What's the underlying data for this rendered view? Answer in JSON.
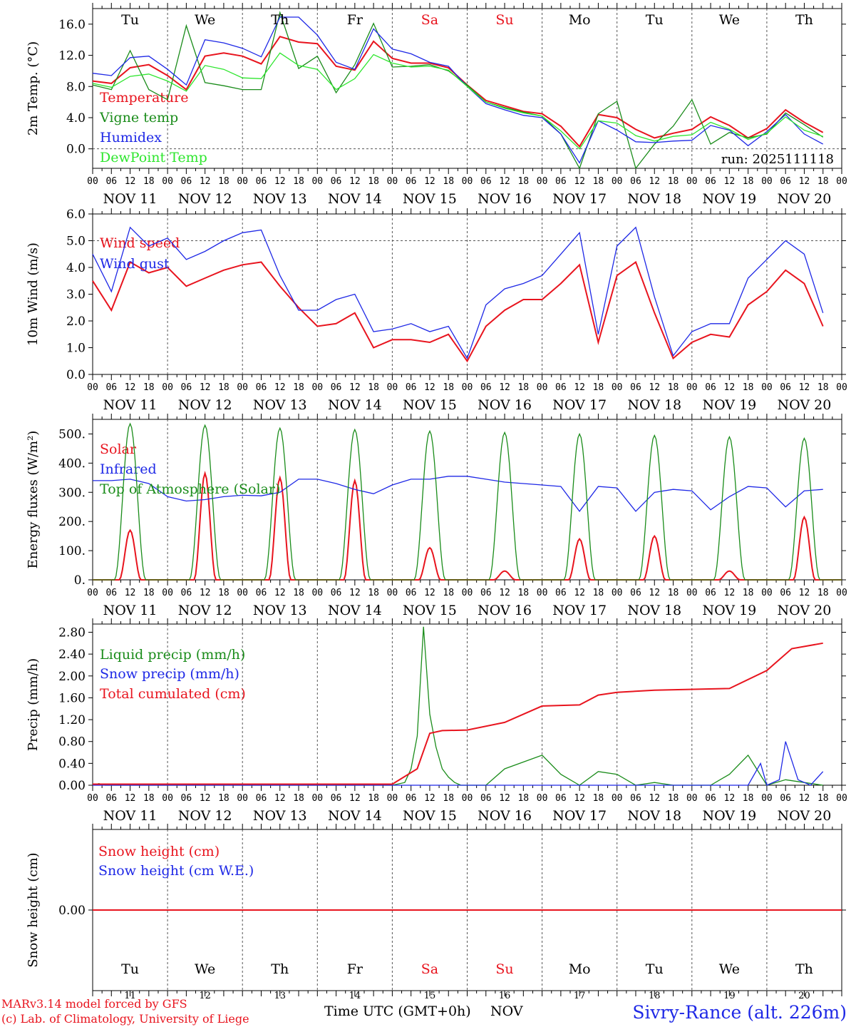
{
  "station": "Sivry-Rance (alt. 226m)",
  "run_label": "run: 2025111118",
  "credits": {
    "line1": "MARv3.14 model forced by GFS",
    "line2": "(c) Lab. of Climatology, University of Liege"
  },
  "xaxis": {
    "title": "Time UTC (GMT+0h)",
    "month": "NOV",
    "hour_ticks": [
      "00",
      "06",
      "12",
      "18"
    ],
    "day_labels": [
      "NOV 11",
      "NOV 12",
      "NOV 13",
      "NOV 14",
      "NOV 15",
      "NOV 16",
      "NOV 17",
      "NOV 18",
      "NOV 19",
      "NOV 20"
    ],
    "day_numbers": [
      "11",
      "12",
      "13",
      "14",
      "15",
      "16",
      "17",
      "18",
      "19",
      "20"
    ],
    "weekdays": [
      "Tu",
      "We",
      "Th",
      "Fr",
      "Sa",
      "Su",
      "Mo",
      "Tu",
      "We",
      "Th"
    ],
    "weekend": [
      false,
      false,
      false,
      false,
      true,
      true,
      false,
      false,
      false,
      false
    ]
  },
  "colors": {
    "red": "#e8141e",
    "green": "#1a8c1a",
    "blue": "#1e28e6",
    "lightgreen": "#2ee62e",
    "grid": "#555555",
    "axis": "#000000"
  },
  "chart_data": [
    {
      "type": "line",
      "title": "",
      "ylabel": "2m Temp. (°C)",
      "ylim": [
        -2.5,
        18.0
      ],
      "yticks": [
        "0.0",
        "4.0",
        "8.0",
        "12.0",
        "16.0"
      ],
      "ytick_values": [
        0,
        4,
        8,
        12,
        16
      ],
      "ref_line": 0,
      "x_unit": "hours since NOV 11 00 UTC",
      "series": [
        {
          "name": "Temperature",
          "color": "red",
          "x": [
            0,
            6,
            12,
            18,
            24,
            30,
            36,
            42,
            48,
            54,
            60,
            66,
            72,
            78,
            84,
            90,
            96,
            102,
            108,
            114,
            120,
            126,
            132,
            138,
            144,
            150,
            156,
            162,
            168,
            174,
            180,
            186,
            192,
            198,
            204,
            210,
            216,
            222,
            228,
            234
          ],
          "values": [
            8.7,
            8.4,
            10.4,
            10.8,
            9.4,
            7.6,
            11.9,
            12.3,
            11.9,
            10.9,
            14.4,
            13.7,
            13.5,
            10.6,
            10.1,
            13.8,
            11.6,
            11.0,
            11.0,
            10.4,
            8.2,
            6.2,
            5.5,
            4.8,
            4.5,
            2.9,
            0.3,
            4.4,
            4.0,
            2.5,
            1.4,
            2.0,
            2.5,
            4.1,
            3.0,
            1.4,
            2.6,
            5.0,
            3.4,
            2.1
          ]
        },
        {
          "name": "Vigne temp",
          "color": "green",
          "x": [
            0,
            6,
            12,
            18,
            24,
            30,
            36,
            42,
            48,
            54,
            60,
            66,
            72,
            78,
            84,
            90,
            96,
            102,
            108,
            114,
            120,
            126,
            132,
            138,
            144,
            150,
            156,
            162,
            168,
            174,
            180,
            186,
            192,
            198,
            204,
            210,
            216,
            222,
            228,
            234
          ],
          "values": [
            8.2,
            7.6,
            12.6,
            7.6,
            6.3,
            15.8,
            8.5,
            8.1,
            7.6,
            7.6,
            17.5,
            10.3,
            11.9,
            7.2,
            10.8,
            16.1,
            10.5,
            10.6,
            10.8,
            10.0,
            8.2,
            6.0,
            5.3,
            4.7,
            4.2,
            1.9,
            -2.5,
            4.5,
            6.1,
            -2.5,
            0.6,
            2.9,
            6.3,
            0.6,
            2.1,
            1.4,
            1.9,
            4.6,
            3.1,
            1.5
          ]
        },
        {
          "name": "Humidex",
          "color": "blue",
          "x": [
            0,
            6,
            12,
            18,
            24,
            30,
            36,
            42,
            48,
            54,
            60,
            66,
            72,
            78,
            84,
            90,
            96,
            102,
            108,
            114,
            120,
            126,
            132,
            138,
            144,
            150,
            156,
            162,
            168,
            174,
            180,
            186,
            192,
            198,
            204,
            210,
            216,
            222,
            228,
            234
          ],
          "values": [
            9.7,
            9.4,
            11.7,
            11.9,
            10.2,
            8.2,
            14.0,
            13.6,
            12.9,
            11.8,
            16.9,
            16.9,
            14.6,
            11.1,
            10.2,
            15.4,
            12.8,
            12.2,
            11.1,
            10.6,
            8.0,
            5.8,
            5.0,
            4.3,
            4.0,
            1.9,
            -1.8,
            3.6,
            2.4,
            0.9,
            0.8,
            1.0,
            1.1,
            3.0,
            2.4,
            0.4,
            2.2,
            4.4,
            1.9,
            0.6
          ]
        },
        {
          "name": "DewPoint Temp",
          "color": "lightgreen",
          "x": [
            0,
            6,
            12,
            18,
            24,
            30,
            36,
            42,
            48,
            54,
            60,
            66,
            72,
            78,
            84,
            90,
            96,
            102,
            108,
            114,
            120,
            126,
            132,
            138,
            144,
            150,
            156,
            162,
            168,
            174,
            180,
            186,
            192,
            198,
            204,
            210,
            216,
            222,
            228,
            234
          ],
          "values": [
            8.4,
            7.9,
            9.3,
            9.6,
            8.7,
            7.4,
            10.7,
            10.2,
            9.1,
            9.0,
            12.3,
            10.7,
            10.2,
            7.6,
            9.0,
            12.1,
            11.0,
            10.5,
            10.6,
            10.1,
            8.0,
            6.0,
            5.2,
            4.6,
            4.2,
            2.3,
            0.0,
            3.6,
            3.3,
            1.7,
            1.0,
            1.6,
            1.8,
            3.4,
            2.5,
            1.2,
            2.0,
            4.1,
            2.4,
            1.6
          ]
        }
      ]
    },
    {
      "type": "line",
      "title": "",
      "ylabel": "10m Wind (m/s)",
      "ylim": [
        0,
        6.0
      ],
      "yticks": [
        "0.0",
        "1.0",
        "2.0",
        "3.0",
        "4.0",
        "5.0",
        "6.0"
      ],
      "ytick_values": [
        0,
        1,
        2,
        3,
        4,
        5,
        6
      ],
      "ref_line": 5,
      "x_unit": "hours since NOV 11 00 UTC",
      "series": [
        {
          "name": "Wind speed",
          "color": "red",
          "x": [
            0,
            6,
            12,
            18,
            24,
            30,
            36,
            42,
            48,
            54,
            60,
            66,
            72,
            78,
            84,
            90,
            96,
            102,
            108,
            114,
            120,
            126,
            132,
            138,
            144,
            150,
            156,
            162,
            168,
            174,
            180,
            186,
            192,
            198,
            204,
            210,
            216,
            222,
            228,
            234
          ],
          "values": [
            3.5,
            2.4,
            4.2,
            3.8,
            4.0,
            3.3,
            3.6,
            3.9,
            4.1,
            4.2,
            3.3,
            2.5,
            1.8,
            1.9,
            2.3,
            1.0,
            1.3,
            1.3,
            1.2,
            1.5,
            0.5,
            1.8,
            2.4,
            2.8,
            2.8,
            3.4,
            4.1,
            1.2,
            3.7,
            4.2,
            2.3,
            0.6,
            1.2,
            1.5,
            1.4,
            2.6,
            3.1,
            3.9,
            3.4,
            1.8
          ]
        },
        {
          "name": "Wind gust",
          "color": "blue",
          "x": [
            0,
            6,
            12,
            18,
            24,
            30,
            36,
            42,
            48,
            54,
            60,
            66,
            72,
            78,
            84,
            90,
            96,
            102,
            108,
            114,
            120,
            126,
            132,
            138,
            144,
            150,
            156,
            162,
            168,
            174,
            180,
            186,
            192,
            198,
            204,
            210,
            216,
            222,
            228,
            234
          ],
          "values": [
            4.5,
            3.1,
            5.5,
            4.8,
            5.1,
            4.3,
            4.6,
            5.0,
            5.3,
            5.4,
            3.7,
            2.4,
            2.4,
            2.8,
            3.0,
            1.6,
            1.7,
            1.9,
            1.6,
            1.8,
            0.6,
            2.6,
            3.2,
            3.4,
            3.7,
            4.5,
            5.3,
            1.5,
            4.8,
            5.5,
            2.9,
            0.7,
            1.6,
            1.9,
            1.9,
            3.6,
            4.3,
            5.0,
            4.5,
            2.3
          ]
        }
      ]
    },
    {
      "type": "line",
      "title": "",
      "ylabel": "Energy fluxes (W/m²)",
      "ylim": [
        0,
        550
      ],
      "yticks": [
        "0.",
        "100.",
        "200.",
        "300.",
        "400.",
        "500."
      ],
      "ytick_values": [
        0,
        100,
        200,
        300,
        400,
        500
      ],
      "x_unit": "hours since NOV 11 00 UTC",
      "series": [
        {
          "name": "Solar",
          "color": "red",
          "peaks": [
            170,
            365,
            350,
            340,
            110,
            30,
            140,
            150,
            30,
            215
          ]
        },
        {
          "name": "Infrared",
          "color": "blue",
          "x": [
            0,
            6,
            12,
            18,
            24,
            30,
            36,
            42,
            48,
            54,
            60,
            66,
            72,
            78,
            84,
            90,
            96,
            102,
            108,
            114,
            120,
            126,
            132,
            138,
            144,
            150,
            156,
            162,
            168,
            174,
            180,
            186,
            192,
            198,
            204,
            210,
            216,
            222,
            228,
            234
          ],
          "values": [
            340,
            340,
            345,
            330,
            285,
            270,
            275,
            285,
            290,
            288,
            300,
            345,
            345,
            330,
            310,
            295,
            325,
            345,
            345,
            355,
            355,
            345,
            335,
            330,
            325,
            320,
            235,
            320,
            315,
            235,
            300,
            310,
            305,
            240,
            285,
            320,
            315,
            250,
            305,
            310
          ]
        },
        {
          "name": "Top of Atmosphere (Solar)",
          "color": "green",
          "peaks": [
            535,
            530,
            520,
            515,
            510,
            505,
            500,
            495,
            490,
            485
          ]
        }
      ]
    },
    {
      "type": "line",
      "title": "",
      "ylabel": "Precip (mm/h)",
      "ylim": [
        0,
        2.95
      ],
      "yticks": [
        "0.00",
        "0.40",
        "0.80",
        "1.20",
        "1.60",
        "2.00",
        "2.40",
        "2.80"
      ],
      "ytick_values": [
        0,
        0.4,
        0.8,
        1.2,
        1.6,
        2.0,
        2.4,
        2.8
      ],
      "x_unit": "hours since NOV 11 00 UTC",
      "series": [
        {
          "name": "Liquid precip (mm/h)",
          "color": "green",
          "x": [
            0,
            2,
            4,
            24,
            60,
            96,
            100,
            102,
            104,
            106,
            108,
            110,
            112,
            114,
            116,
            118,
            120,
            126,
            132,
            144,
            150,
            156,
            162,
            168,
            174,
            180,
            186,
            192,
            198,
            204,
            210,
            216,
            222,
            228,
            234
          ],
          "values": [
            0.0,
            0.03,
            0.0,
            0.0,
            0.0,
            0.0,
            0.05,
            0.3,
            0.9,
            2.9,
            1.3,
            0.7,
            0.3,
            0.15,
            0.05,
            0.0,
            0.0,
            0.0,
            0.3,
            0.55,
            0.2,
            0.0,
            0.25,
            0.2,
            0.0,
            0.05,
            0.0,
            0.0,
            0.0,
            0.2,
            0.55,
            0.0,
            0.1,
            0.05,
            0.0
          ]
        },
        {
          "name": "Snow precip (mm/h)",
          "color": "blue",
          "x": [
            0,
            168,
            210,
            214,
            216,
            220,
            222,
            226,
            230,
            234
          ],
          "values": [
            0.0,
            0.0,
            0.0,
            0.4,
            0.0,
            0.1,
            0.8,
            0.1,
            0.0,
            0.25
          ]
        },
        {
          "name": "Total cumulated (cm)",
          "color": "red",
          "x": [
            0,
            96,
            104,
            108,
            112,
            120,
            132,
            144,
            150,
            156,
            162,
            168,
            180,
            204,
            216,
            224,
            234
          ],
          "values": [
            0.02,
            0.02,
            0.3,
            0.95,
            1.0,
            1.01,
            1.15,
            1.45,
            1.46,
            1.47,
            1.65,
            1.7,
            1.74,
            1.77,
            2.1,
            2.5,
            2.6
          ]
        }
      ]
    },
    {
      "type": "line",
      "title": "",
      "ylabel": "Snow height (cm)",
      "ylim": [
        -1,
        1
      ],
      "yticks": [
        "0.00"
      ],
      "ytick_values": [
        0
      ],
      "x_unit": "hours since NOV 11 00 UTC",
      "series": [
        {
          "name": "Snow height (cm)",
          "color": "red",
          "x": [
            0,
            240
          ],
          "values": [
            0,
            0
          ]
        },
        {
          "name": "Snow height (cm W.E.)",
          "color": "blue",
          "x": [],
          "values": []
        }
      ]
    }
  ]
}
